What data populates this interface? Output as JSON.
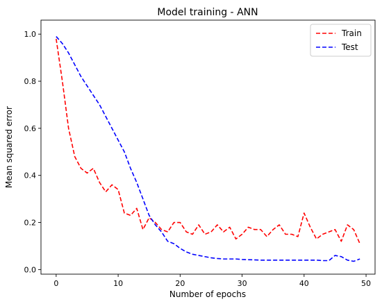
{
  "chart_data": {
    "type": "line",
    "title": "Model training - ANN",
    "xlabel": "Number of epochs",
    "ylabel": "Mean squared error",
    "xlim": [
      -2.45,
      51.45
    ],
    "ylim": [
      -0.0195,
      1.0595
    ],
    "xticks": [
      0,
      10,
      20,
      30,
      40,
      50
    ],
    "yticks": [
      0.0,
      0.2,
      0.4,
      0.6,
      0.8,
      1.0
    ],
    "ytick_labels": [
      "0.0",
      "0.2",
      "0.4",
      "0.6",
      "0.8",
      "1.0"
    ],
    "grid": false,
    "legend": "upper-right",
    "x": [
      0,
      1,
      2,
      3,
      4,
      5,
      6,
      7,
      8,
      9,
      10,
      11,
      12,
      13,
      14,
      15,
      16,
      17,
      18,
      19,
      20,
      21,
      22,
      23,
      24,
      25,
      26,
      27,
      28,
      29,
      30,
      31,
      32,
      33,
      34,
      35,
      36,
      37,
      38,
      39,
      40,
      41,
      42,
      43,
      44,
      45,
      46,
      47,
      48,
      49
    ],
    "series": [
      {
        "name": "Train",
        "color": "#ff0000",
        "values": [
          0.98,
          0.8,
          0.6,
          0.48,
          0.43,
          0.41,
          0.43,
          0.37,
          0.33,
          0.36,
          0.34,
          0.24,
          0.23,
          0.26,
          0.17,
          0.22,
          0.2,
          0.17,
          0.16,
          0.2,
          0.2,
          0.16,
          0.15,
          0.19,
          0.15,
          0.16,
          0.19,
          0.16,
          0.18,
          0.13,
          0.15,
          0.18,
          0.17,
          0.17,
          0.14,
          0.17,
          0.19,
          0.15,
          0.15,
          0.14,
          0.24,
          0.18,
          0.13,
          0.15,
          0.16,
          0.17,
          0.12,
          0.19,
          0.17,
          0.11
        ]
      },
      {
        "name": "Test",
        "color": "#0000ff",
        "values": [
          0.99,
          0.96,
          0.92,
          0.87,
          0.82,
          0.78,
          0.74,
          0.7,
          0.65,
          0.6,
          0.55,
          0.5,
          0.43,
          0.37,
          0.3,
          0.23,
          0.19,
          0.16,
          0.12,
          0.11,
          0.09,
          0.075,
          0.065,
          0.06,
          0.055,
          0.05,
          0.047,
          0.045,
          0.045,
          0.045,
          0.043,
          0.042,
          0.041,
          0.04,
          0.04,
          0.04,
          0.04,
          0.04,
          0.04,
          0.04,
          0.04,
          0.04,
          0.04,
          0.038,
          0.038,
          0.06,
          0.055,
          0.04,
          0.035,
          0.045
        ]
      }
    ]
  }
}
